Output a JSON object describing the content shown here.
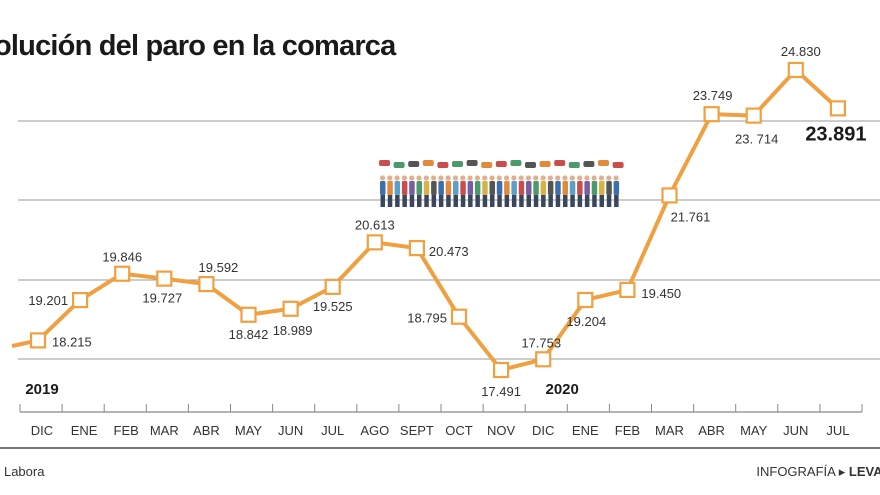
{
  "title": "olución del paro en la comarca",
  "footer": {
    "source_label": ":",
    "source": "Labora",
    "credit_prefix": "INFOGRAFÍA",
    "credit": "LEVAN"
  },
  "colors": {
    "line": "#f0a040",
    "marker_fill": "#ffffff",
    "grid": "#9a9a9a",
    "text": "#333333"
  },
  "illustration": "crowd-of-people-with-speech-bubbles",
  "chart_data": {
    "type": "line",
    "title": "olución del paro en la comarca",
    "xlabel": "",
    "ylabel": "",
    "ylim": [
      17,
      25.5
    ],
    "grid": true,
    "categories": [
      "DIC",
      "ENE",
      "FEB",
      "MAR",
      "ABR",
      "MAY",
      "JUN",
      "JUL",
      "AGO",
      "SEPT",
      "OCT",
      "NOV",
      "DIC",
      "ENE",
      "FEB",
      "MAR",
      "ABR",
      "MAY",
      "JUN",
      "JUL"
    ],
    "year_labels": [
      {
        "label": "2019",
        "category_index": 0
      },
      {
        "label": "2020",
        "category_index": 12
      }
    ],
    "series": [
      {
        "values": [
          18215,
          19201,
          19846,
          19727,
          19592,
          18842,
          18989,
          19525,
          20613,
          20473,
          18795,
          17491,
          17753,
          19204,
          19450,
          21761,
          23749,
          23714,
          24830,
          23891
        ],
        "labels": [
          "18.215",
          "19.201",
          "19.846",
          "19.727",
          "19.592",
          "18.842",
          "18.989",
          "19.525",
          "20.613",
          "20.473",
          "18.795",
          "17.491",
          "17.753",
          "19.204",
          "19.450",
          "21.761",
          "23.749",
          "23. 714",
          "24.830",
          "23.891"
        ]
      }
    ]
  }
}
